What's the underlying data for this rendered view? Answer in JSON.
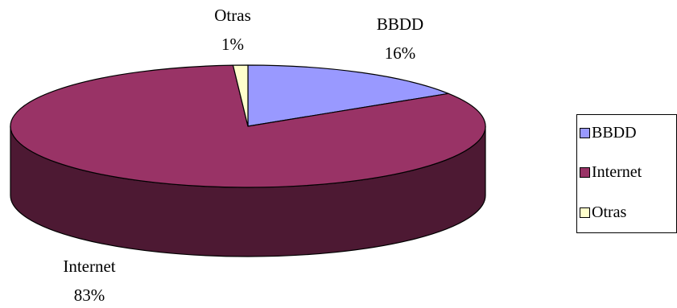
{
  "chart_data": {
    "type": "pie",
    "style": "3d",
    "title": "",
    "slices": [
      {
        "label": "BBDD",
        "value": 16,
        "value_label": "16%",
        "color": "#9999ff",
        "side_color": "#4d4d80"
      },
      {
        "label": "Internet",
        "value": 83,
        "value_label": "83%",
        "color": "#993366",
        "side_color": "#4d1933"
      },
      {
        "label": "Otras",
        "value": 1,
        "value_label": "1%",
        "color": "#ffffcc",
        "side_color": "#808066"
      }
    ],
    "legend": {
      "placement": "right",
      "entries": [
        "BBDD",
        "Internet",
        "Otras"
      ]
    }
  }
}
